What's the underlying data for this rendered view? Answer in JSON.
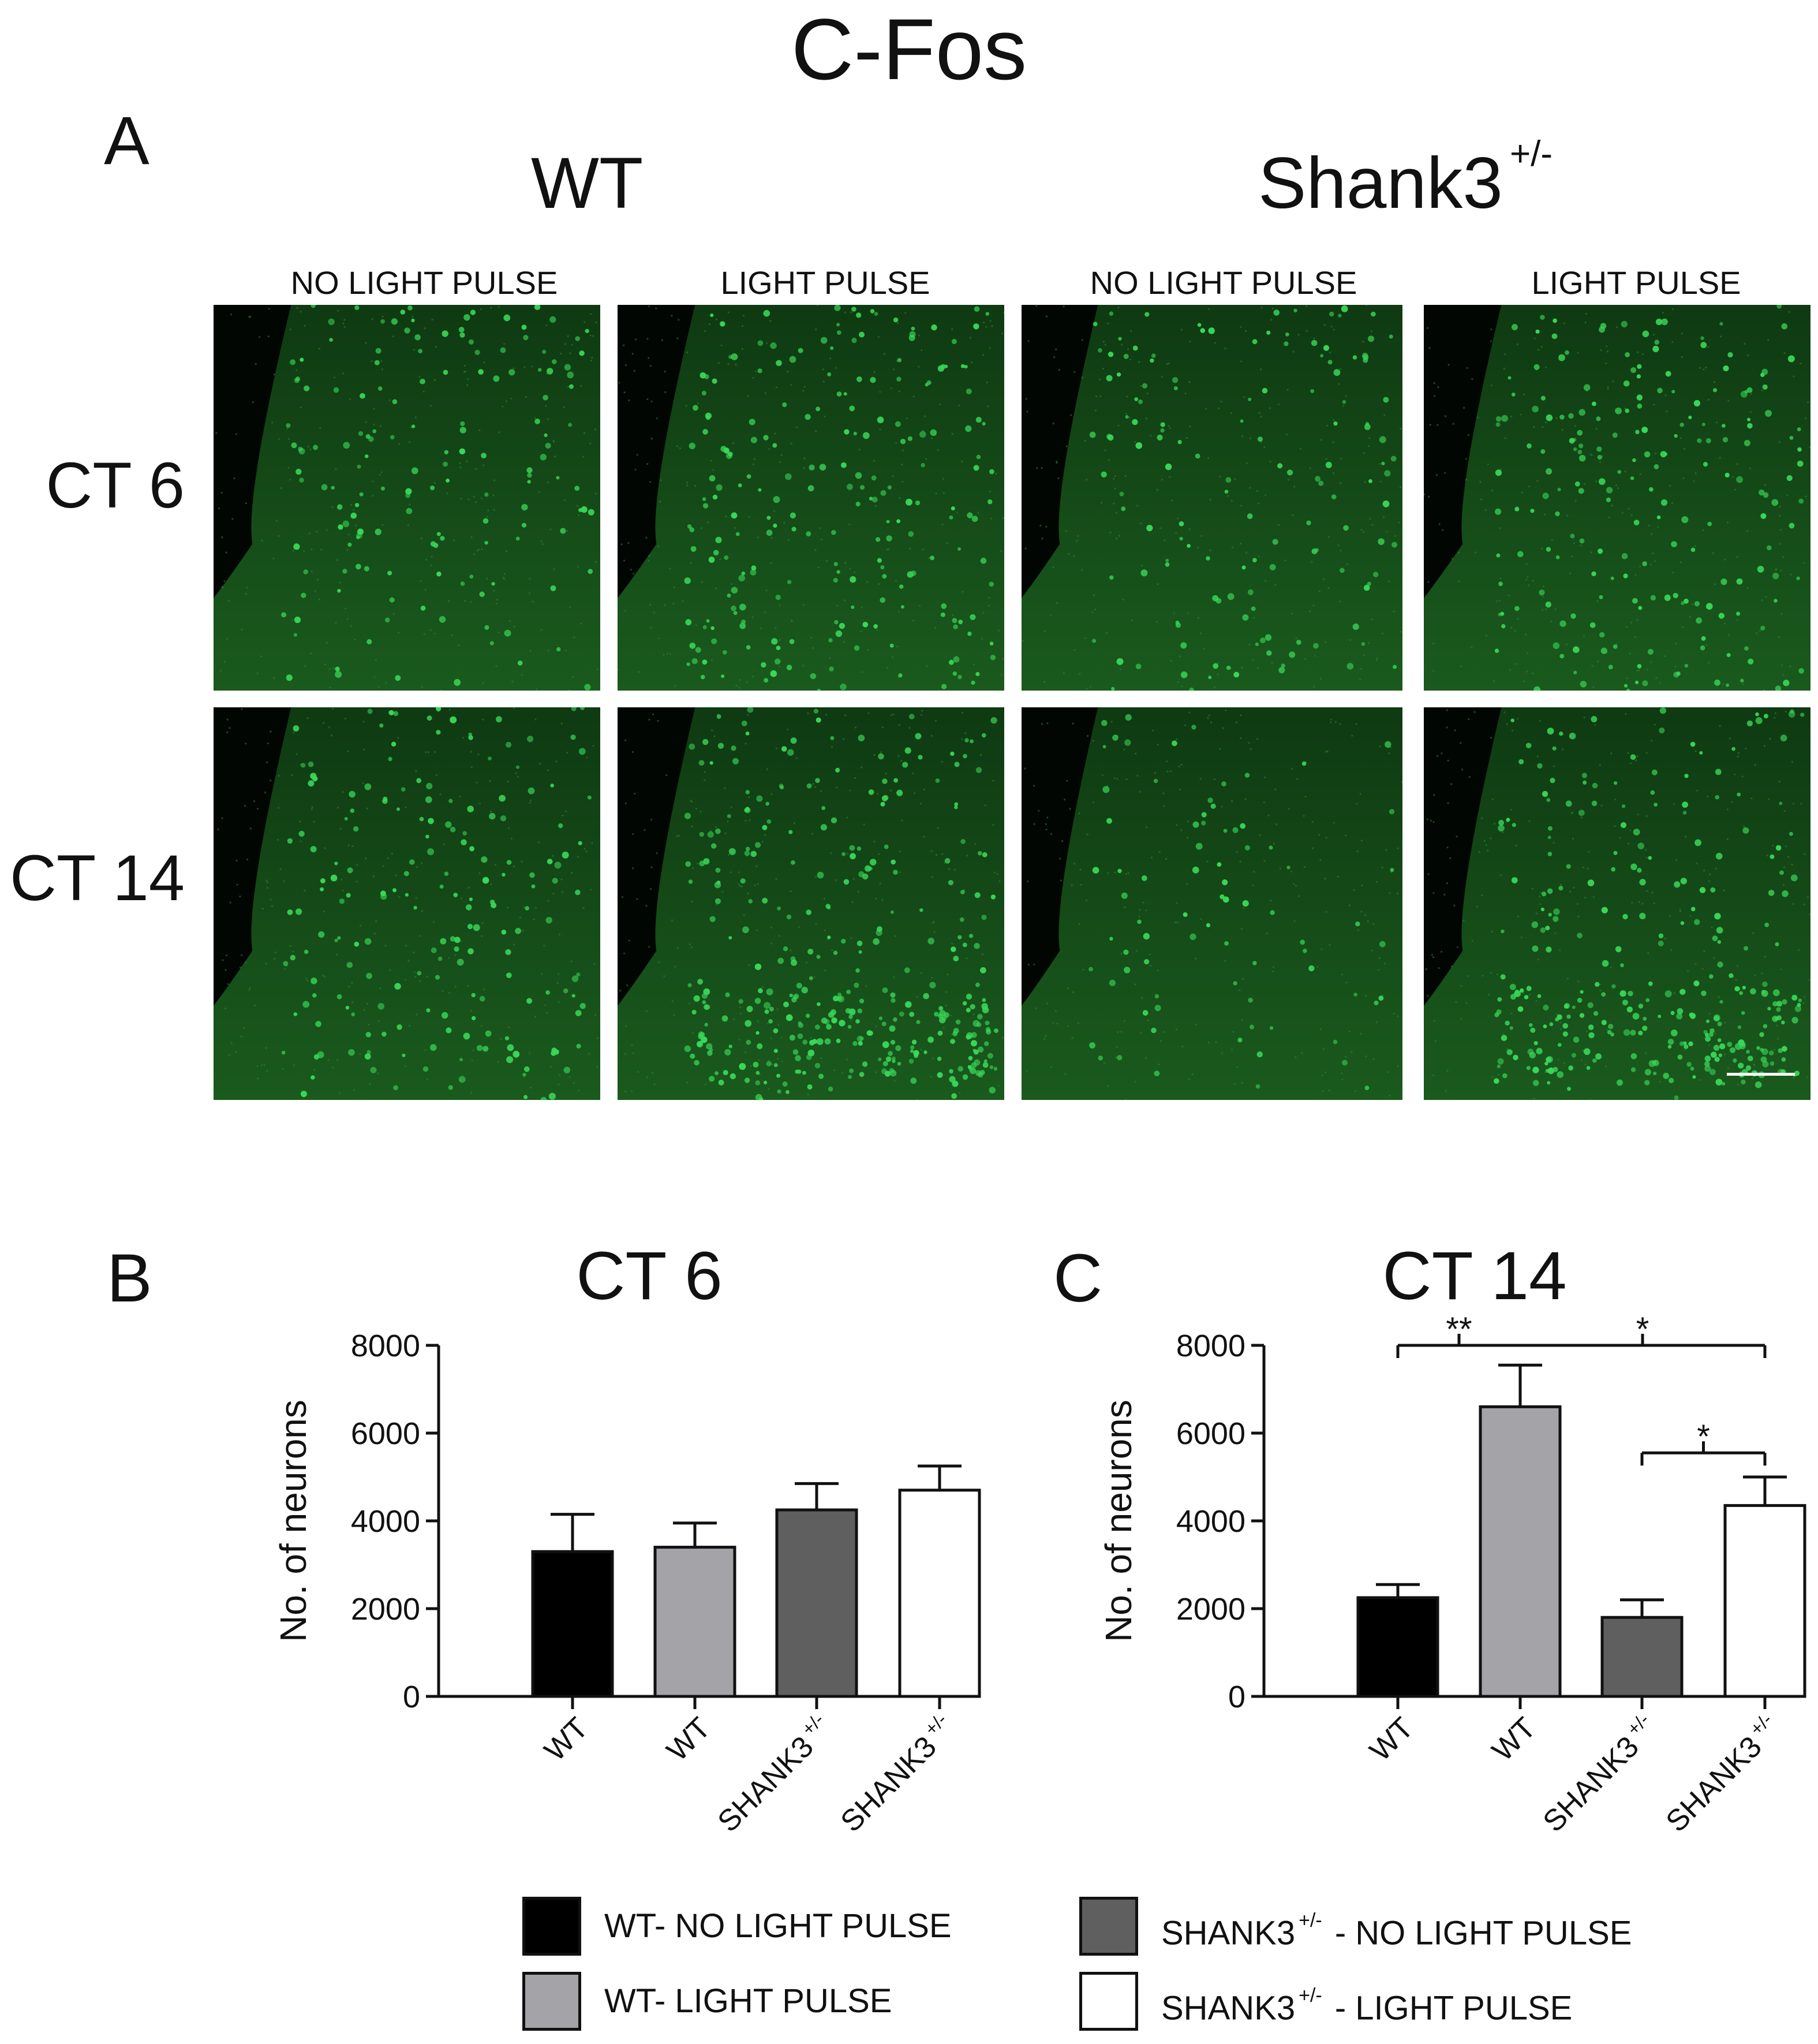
{
  "figure_title": "C-Fos",
  "panel_a": {
    "letter": "A",
    "groups": [
      {
        "name": "WT",
        "sup": ""
      },
      {
        "name": "Shank3",
        "sup": "+/-"
      }
    ],
    "column_labels": [
      "NO LIGHT PULSE",
      "LIGHT PULSE",
      "NO LIGHT PULSE",
      "LIGHT PULSE"
    ],
    "row_labels": [
      "CT 6",
      "CT 14"
    ],
    "image_tint": "#39d85a",
    "cell_density": [
      [
        0.35,
        0.55,
        0.3,
        0.5
      ],
      [
        0.45,
        1.0,
        0.12,
        0.85
      ]
    ]
  },
  "chart_data": [
    {
      "type": "bar",
      "panel": "B",
      "title": "CT 6",
      "ylabel": "No. of neurons",
      "ylim": [
        0,
        8000
      ],
      "yticks": [
        0,
        2000,
        4000,
        6000,
        8000
      ],
      "categories": [
        "WT",
        "WT",
        "SHANK3",
        "SHANK3"
      ],
      "category_sup": [
        "",
        "",
        "+/-",
        "+/-"
      ],
      "values": [
        3300,
        3400,
        4250,
        4700
      ],
      "errors": [
        850,
        550,
        600,
        550
      ],
      "colors": [
        "#000000",
        "#a3a3a8",
        "#5f5f5f",
        "#ffffff"
      ],
      "significance": []
    },
    {
      "type": "bar",
      "panel": "C",
      "title": "CT 14",
      "ylabel": "No. of neurons",
      "ylim": [
        0,
        8000
      ],
      "yticks": [
        0,
        2000,
        4000,
        6000,
        8000
      ],
      "categories": [
        "WT",
        "WT",
        "SHANK3",
        "SHANK3"
      ],
      "category_sup": [
        "",
        "",
        "+/-",
        "+/-"
      ],
      "values": [
        2250,
        6600,
        1800,
        4350
      ],
      "errors": [
        300,
        950,
        400,
        650
      ],
      "colors": [
        "#000000",
        "#a3a3a8",
        "#5f5f5f",
        "#ffffff"
      ],
      "significance": [
        {
          "from": 0,
          "to": 3,
          "level": 8000,
          "labels": [
            {
              "between": [
                0,
                1
              ],
              "text": "**"
            },
            {
              "between": [
                1,
                3
              ],
              "text": "*"
            }
          ]
        },
        {
          "from": 2,
          "to": 3,
          "level": 5550,
          "labels": [
            {
              "between": [
                2,
                3
              ],
              "text": "*"
            }
          ]
        }
      ]
    }
  ],
  "legend": [
    {
      "prefix": "WT- NO LIGHT PULSE",
      "sup": "",
      "suffix": "",
      "color": "#000000"
    },
    {
      "prefix": "SHANK3",
      "sup": "+/-",
      "suffix": " - NO LIGHT PULSE",
      "color": "#5f5f5f"
    },
    {
      "prefix": "WT- LIGHT PULSE",
      "sup": "",
      "suffix": "",
      "color": "#a3a3a8"
    },
    {
      "prefix": "SHANK3",
      "sup": "+/-",
      "suffix": " - LIGHT PULSE",
      "color": "#ffffff"
    }
  ]
}
